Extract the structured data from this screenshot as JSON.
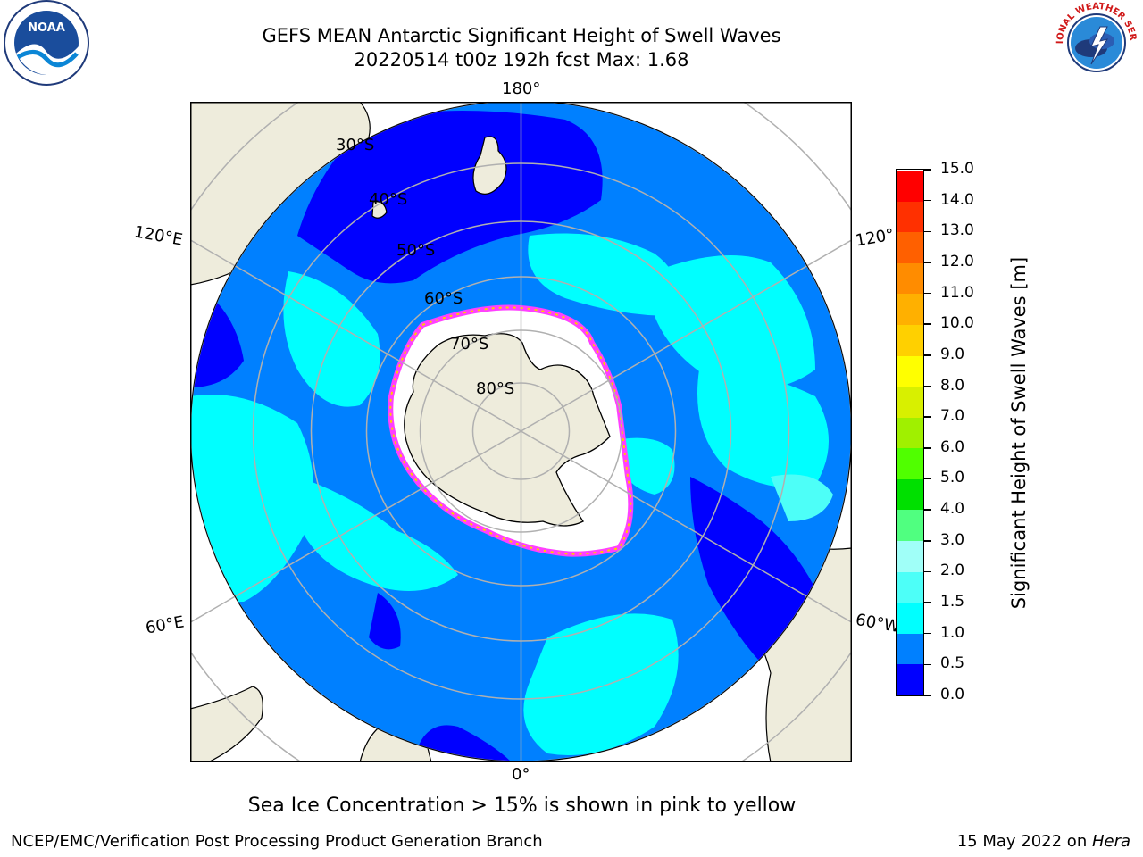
{
  "title": {
    "line1": "GEFS MEAN Antarctic Significant Height of Swell Waves",
    "line2": "20220514 t00z 192h fcst   Max: 1.68"
  },
  "logos": {
    "noara": "NOAA",
    "nws": "NATIONAL WEATHER SERVICE"
  },
  "map": {
    "projection": "south-polar-stereographic",
    "lon_labels": {
      "top": "180°",
      "bottom": "0°",
      "left_upper": "120°E",
      "left_lower": "60°E",
      "right_upper": "120°",
      "right_lower": "60°W"
    },
    "lat_labels": [
      "30°S",
      "40°S",
      "50°S",
      "60°S",
      "70°S",
      "80°S"
    ],
    "colors": {
      "land": "#eeecdc",
      "ocean_0_05": "#0000ff",
      "ocean_05_1": "#0080ff",
      "ocean_1_15": "#00ffff",
      "ocean_15_2": "#4dfff8",
      "ice": "#ffffff",
      "ice_edge": "#ff40ff",
      "ice_inner": "#ffcc00",
      "grid": "#b0b0b0"
    }
  },
  "colorbar": {
    "label": "Significant Height of Swell Waves [m]",
    "ticks": [
      "0.0",
      "0.5",
      "1.0",
      "1.5",
      "2.0",
      "3.0",
      "4.0",
      "5.0",
      "6.0",
      "7.0",
      "8.0",
      "9.0",
      "10.0",
      "11.0",
      "12.0",
      "13.0",
      "14.0",
      "15.0"
    ],
    "colors": [
      "#0000ff",
      "#0080ff",
      "#00ffff",
      "#4dfff8",
      "#a0fff8",
      "#50ff80",
      "#00e000",
      "#50ff00",
      "#a0f000",
      "#d8f000",
      "#ffff00",
      "#ffd000",
      "#ffb000",
      "#ff8c00",
      "#ff6000",
      "#ff3000",
      "#ff0000"
    ]
  },
  "note": "Sea Ice Concentration > 15% is shown in pink to yellow",
  "footer": {
    "left": "NCEP/EMC/Verification Post Processing Product Generation Branch",
    "right_date": "15 May 2022 on ",
    "right_machine": "Hera"
  }
}
